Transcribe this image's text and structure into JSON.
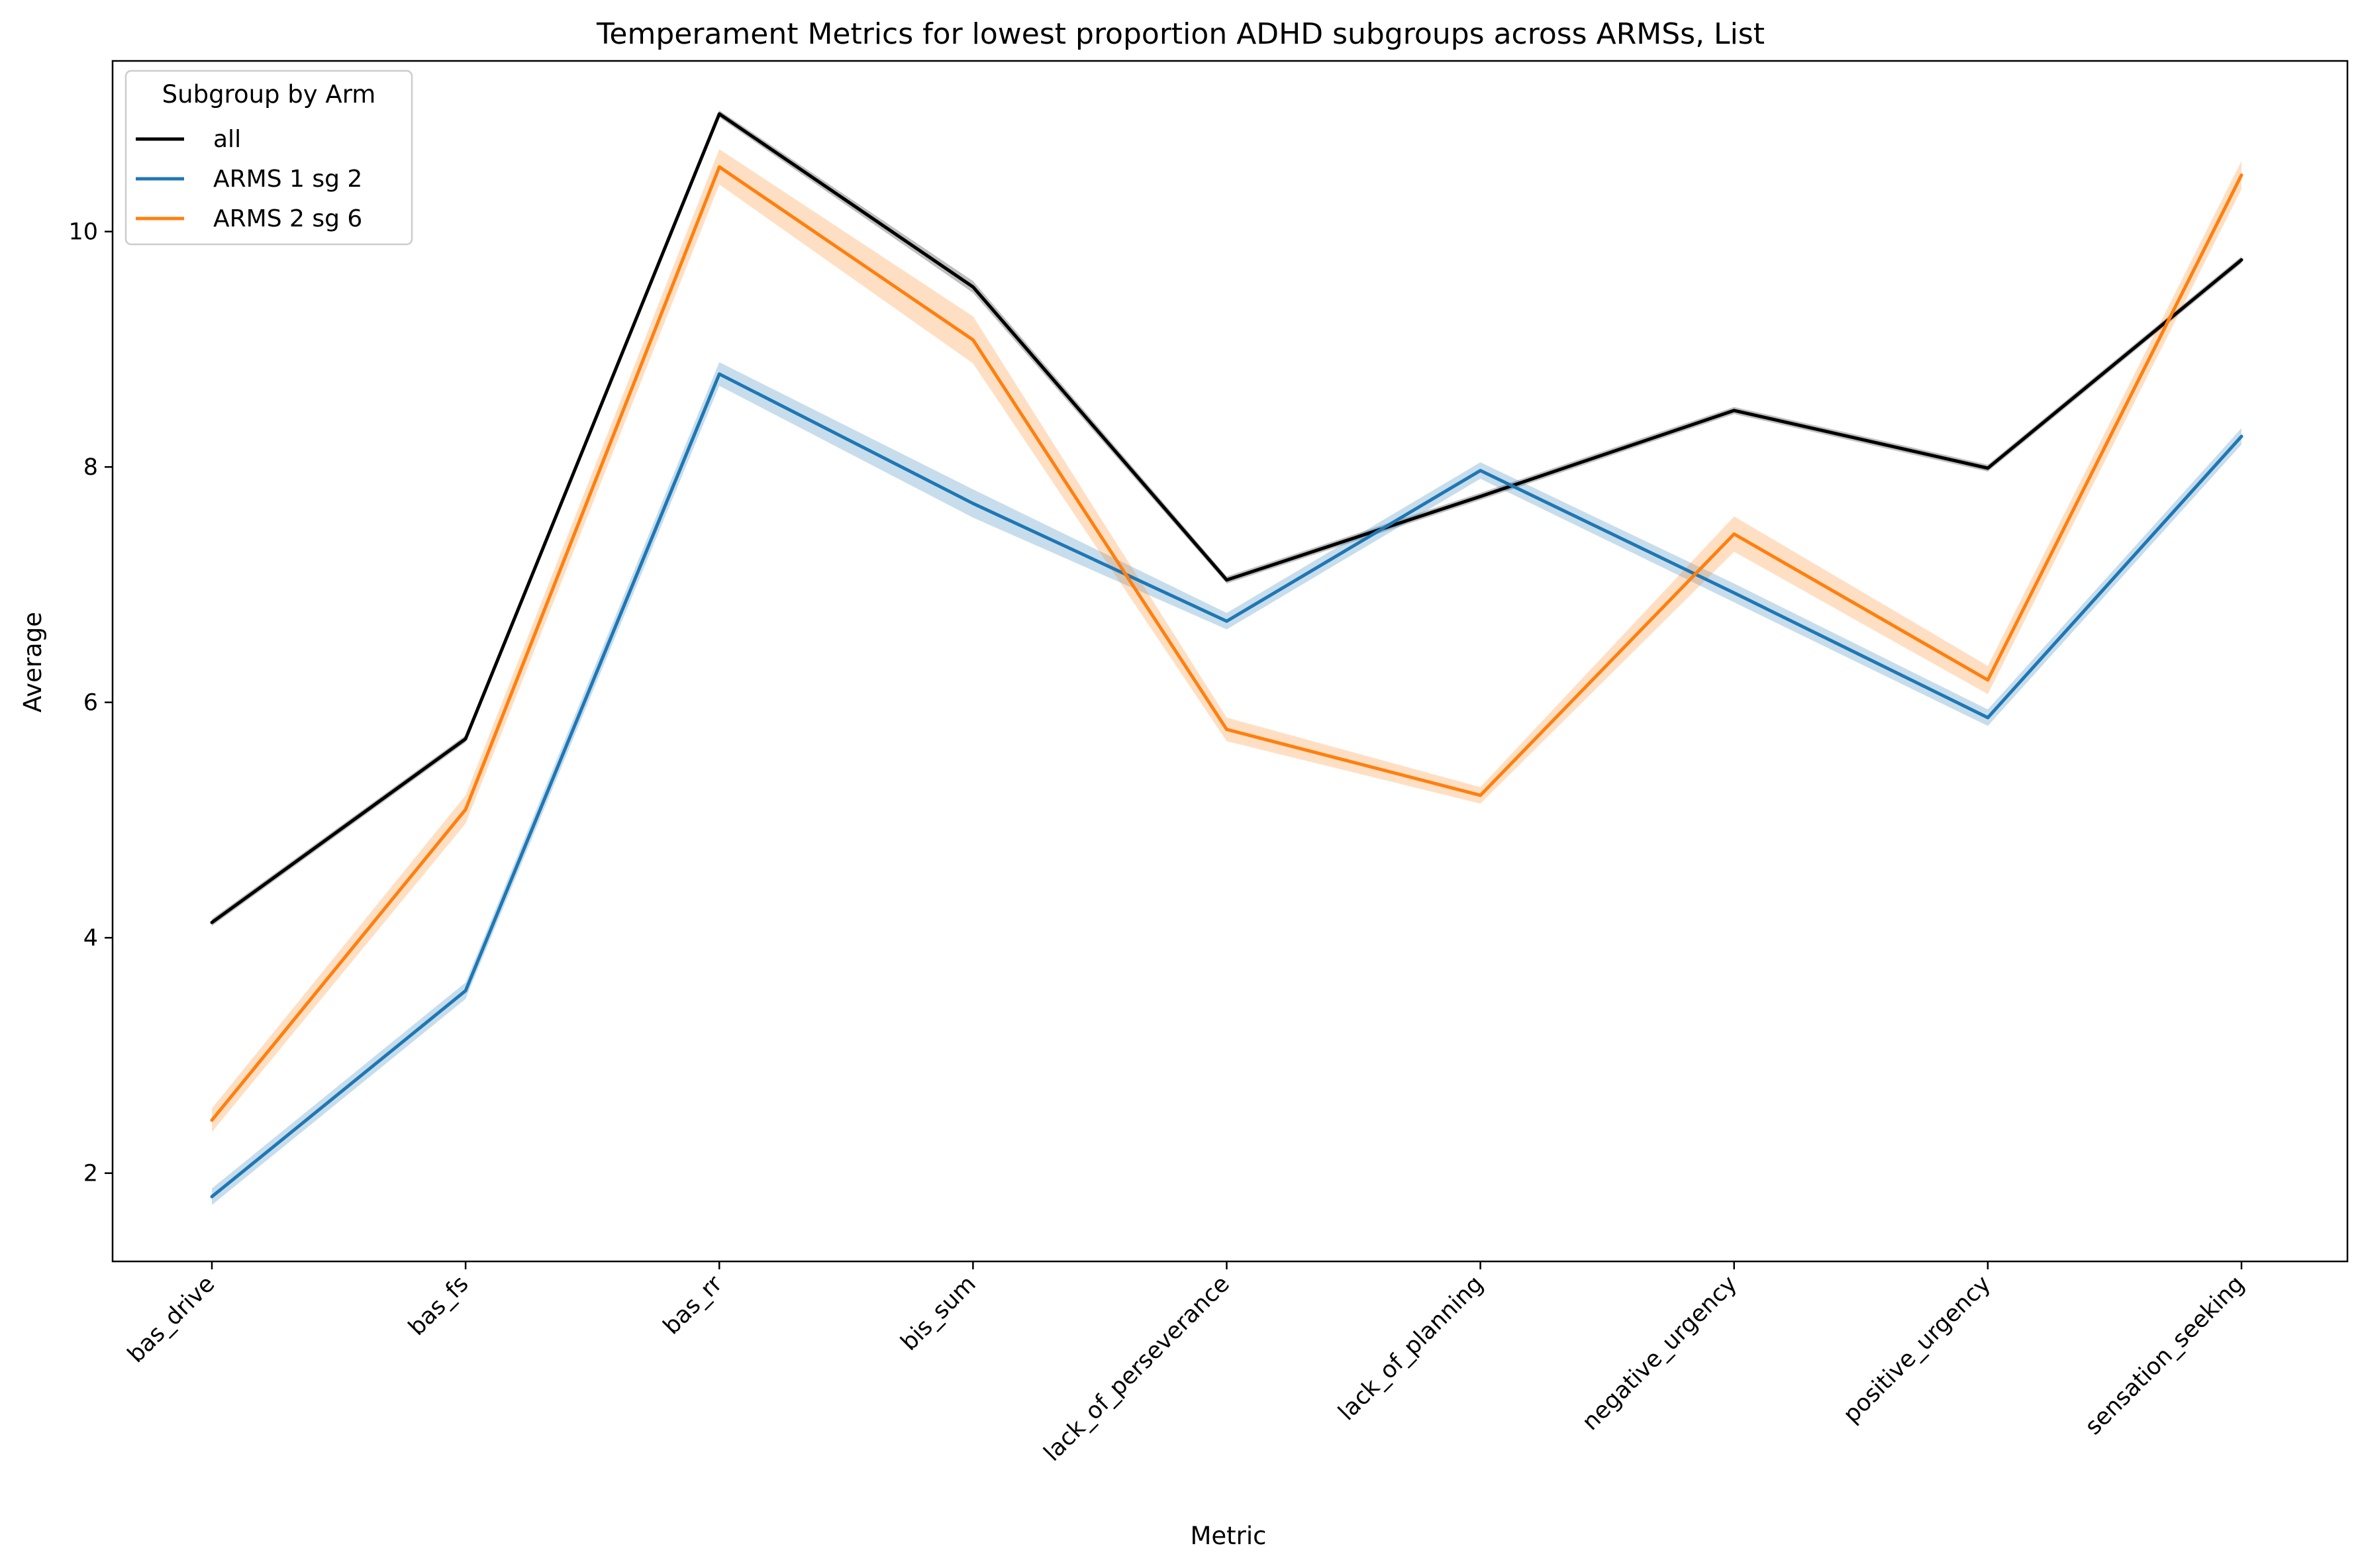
{
  "chart_data": {
    "type": "line",
    "title": "Temperament Metrics for lowest proportion ADHD subgroups across ARMSs, List",
    "xlabel": "Metric",
    "ylabel": "Average",
    "categories": [
      "bas_drive",
      "bas_fs",
      "bas_rr",
      "bis_sum",
      "lack_of_perseverance",
      "lack_of_planning",
      "negative_urgency",
      "positive_urgency",
      "sensation_seeking"
    ],
    "yticks": [
      "2",
      "4",
      "6",
      "8",
      "10"
    ],
    "ylim": [
      1.25,
      11.45
    ],
    "grid": false,
    "legend": {
      "title": "Subgroup by Arm",
      "placement": "top-left"
    },
    "series": [
      {
        "name": "all",
        "color": "#000000",
        "values": [
          4.13,
          5.69,
          11.0,
          9.53,
          7.04,
          7.75,
          8.48,
          7.99,
          9.76
        ],
        "ci": [
          0.03,
          0.03,
          0.03,
          0.05,
          0.03,
          0.03,
          0.03,
          0.03,
          0.03
        ]
      },
      {
        "name": "ARMS 1 sg 2",
        "color": "#1f77b4",
        "values": [
          1.8,
          3.55,
          8.79,
          7.69,
          6.69,
          7.97,
          6.93,
          5.87,
          8.26
        ],
        "ci": [
          0.07,
          0.07,
          0.1,
          0.12,
          0.07,
          0.07,
          0.08,
          0.07,
          0.07
        ]
      },
      {
        "name": "ARMS 2 sg 6",
        "color": "#ff7f0e",
        "values": [
          2.45,
          5.09,
          10.55,
          9.08,
          5.77,
          5.21,
          7.43,
          6.19,
          10.48
        ],
        "ci": [
          0.1,
          0.12,
          0.15,
          0.2,
          0.1,
          0.07,
          0.15,
          0.12,
          0.12
        ]
      }
    ]
  }
}
